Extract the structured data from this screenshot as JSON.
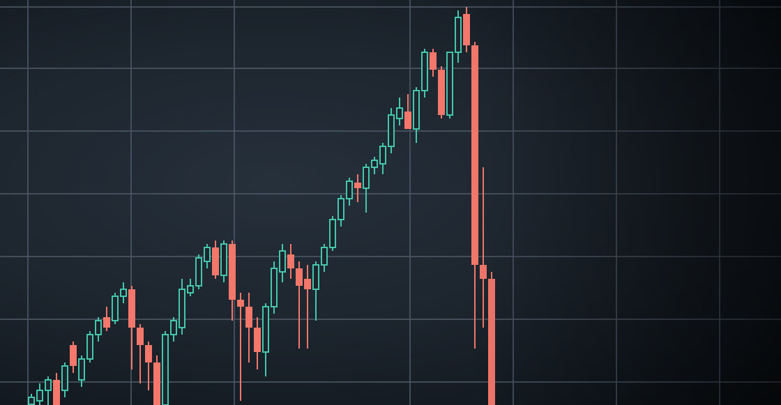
{
  "chart_data": {
    "type": "candlestick",
    "title": "",
    "xlabel": "",
    "ylabel": "",
    "ylim": [
      0,
      60
    ],
    "grid": true,
    "legend": "none",
    "colors": {
      "up": "#45c7ae",
      "down": "#f3786b",
      "grid": "#4b5664",
      "background": "#1d252e"
    },
    "candles": [
      [
        2.0,
        3.5,
        1.9,
        3.0
      ],
      [
        2.5,
        5.0,
        1.9,
        4.0
      ],
      [
        4.0,
        6.0,
        1.9,
        5.5
      ],
      [
        5.5,
        6.5,
        1.9,
        1.9
      ],
      [
        4.0,
        8.0,
        3.0,
        7.5
      ],
      [
        10.5,
        11.0,
        6.5,
        7.5
      ],
      [
        5.5,
        9.0,
        4.5,
        8.5
      ],
      [
        8.5,
        12.5,
        8.0,
        12.0
      ],
      [
        12.0,
        14.5,
        11.0,
        14.0
      ],
      [
        14.5,
        16.0,
        12.5,
        13.0
      ],
      [
        14.0,
        18.0,
        13.5,
        17.5
      ],
      [
        17.5,
        19.5,
        16.5,
        18.5
      ],
      [
        18.5,
        19.0,
        7.0,
        13.0
      ],
      [
        13.0,
        13.5,
        5.0,
        10.5
      ],
      [
        10.5,
        11.0,
        4.0,
        8.0
      ],
      [
        8.0,
        9.0,
        1.9,
        1.9
      ],
      [
        1.9,
        12.5,
        1.9,
        12.0
      ],
      [
        12.0,
        14.5,
        11.0,
        14.0
      ],
      [
        13.0,
        20.0,
        12.0,
        18.5
      ],
      [
        18.0,
        20.0,
        17.5,
        19.0
      ],
      [
        19.0,
        23.5,
        18.5,
        23.0
      ],
      [
        22.5,
        25.0,
        21.5,
        24.5
      ],
      [
        24.5,
        25.5,
        20.0,
        20.5
      ],
      [
        20.5,
        25.5,
        19.5,
        25.0
      ],
      [
        25.0,
        25.5,
        14.0,
        17.0
      ],
      [
        17.0,
        18.0,
        2.5,
        16.0
      ],
      [
        16.0,
        18.0,
        8.0,
        13.0
      ],
      [
        13.0,
        14.5,
        7.0,
        9.5
      ],
      [
        9.5,
        16.5,
        6.0,
        16.0
      ],
      [
        16.0,
        22.5,
        15.0,
        21.5
      ],
      [
        21.0,
        25.0,
        19.5,
        24.0
      ],
      [
        23.5,
        25.0,
        20.0,
        21.5
      ],
      [
        21.5,
        22.5,
        10.0,
        19.0
      ],
      [
        20.0,
        22.0,
        10.0,
        18.5
      ],
      [
        18.5,
        22.5,
        14.0,
        22.0
      ],
      [
        22.0,
        25.0,
        21.0,
        24.5
      ],
      [
        24.5,
        29.0,
        24.0,
        28.5
      ],
      [
        28.5,
        32.0,
        27.5,
        31.5
      ],
      [
        31.5,
        34.5,
        30.5,
        34.0
      ],
      [
        33.8,
        35.0,
        31.0,
        33.0
      ],
      [
        33.0,
        36.5,
        29.5,
        36.0
      ],
      [
        36.0,
        37.5,
        35.0,
        37.0
      ],
      [
        36.5,
        39.5,
        35.0,
        39.0
      ],
      [
        39.0,
        44.5,
        38.0,
        43.5
      ],
      [
        43.0,
        46.0,
        42.0,
        44.5
      ],
      [
        44.0,
        46.5,
        41.5,
        41.5
      ],
      [
        41.5,
        47.5,
        39.5,
        47.0
      ],
      [
        47.0,
        53.0,
        46.0,
        52.5
      ],
      [
        52.5,
        53.0,
        49.0,
        50.0
      ],
      [
        50.0,
        50.5,
        43.0,
        43.5
      ],
      [
        43.5,
        52.5,
        43.0,
        52.5
      ],
      [
        52.5,
        58.5,
        51.0,
        57.5
      ],
      [
        58.0,
        59.0,
        52.5,
        53.5
      ],
      [
        53.5,
        54.0,
        10.0,
        22.0
      ],
      [
        22.0,
        36.0,
        13.0,
        20.0
      ],
      [
        20.0,
        21.0,
        1.9,
        1.9
      ]
    ]
  }
}
